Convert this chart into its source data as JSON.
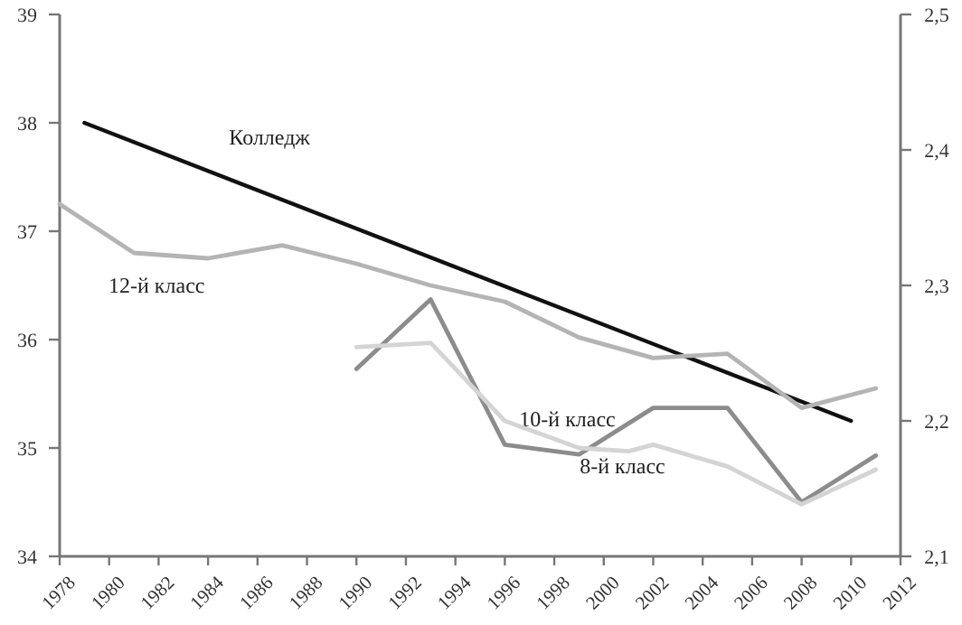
{
  "chart_data": {
    "type": "line",
    "xlim": [
      1978,
      2012
    ],
    "xticks": [
      1978,
      1980,
      1982,
      1984,
      1986,
      1988,
      1990,
      1992,
      1994,
      1996,
      1998,
      2000,
      2002,
      2004,
      2006,
      2008,
      2010,
      2012
    ],
    "ylim": [
      34,
      39
    ],
    "yticks": [
      34,
      35,
      36,
      37,
      38,
      39
    ],
    "y2lim": [
      2.1,
      2.5
    ],
    "y2ticks": [
      {
        "value": 2.1,
        "label": "2,1"
      },
      {
        "value": 2.2,
        "label": "2,2"
      },
      {
        "value": 2.3,
        "label": "2,3"
      },
      {
        "value": 2.4,
        "label": "2,4"
      },
      {
        "value": 2.5,
        "label": "2,5"
      }
    ],
    "grid": false,
    "marker": "none",
    "line_style": "solid",
    "series": [
      {
        "name": "Колледж",
        "color": "#111111",
        "axis": "y2",
        "x": [
          1979,
          2010
        ],
        "values": [
          2.42,
          2.2
        ]
      },
      {
        "name": "12-й класс",
        "color": "#b4b4b4",
        "x": [
          1978,
          1981,
          1984,
          1987,
          1990,
          1993,
          1996,
          1999,
          2002,
          2005,
          2008,
          2011
        ],
        "values": [
          37.25,
          36.8,
          36.75,
          36.87,
          36.7,
          36.5,
          36.35,
          36.02,
          35.83,
          35.87,
          35.37,
          35.55
        ]
      },
      {
        "name": "10-й класс",
        "color": "#8c8c8c",
        "x": [
          1990,
          1993,
          1996,
          1999,
          2002,
          2005,
          2008,
          2011
        ],
        "values": [
          35.73,
          36.37,
          35.03,
          34.94,
          35.37,
          35.37,
          34.5,
          34.93
        ]
      },
      {
        "name": "8-й класс",
        "color": "#d4d4d4",
        "x": [
          1990,
          1993,
          1996,
          1999,
          2001,
          2002,
          2005,
          2008,
          2011
        ],
        "values": [
          35.93,
          35.97,
          35.25,
          35.0,
          34.97,
          35.03,
          34.83,
          34.48,
          34.8
        ]
      }
    ]
  }
}
